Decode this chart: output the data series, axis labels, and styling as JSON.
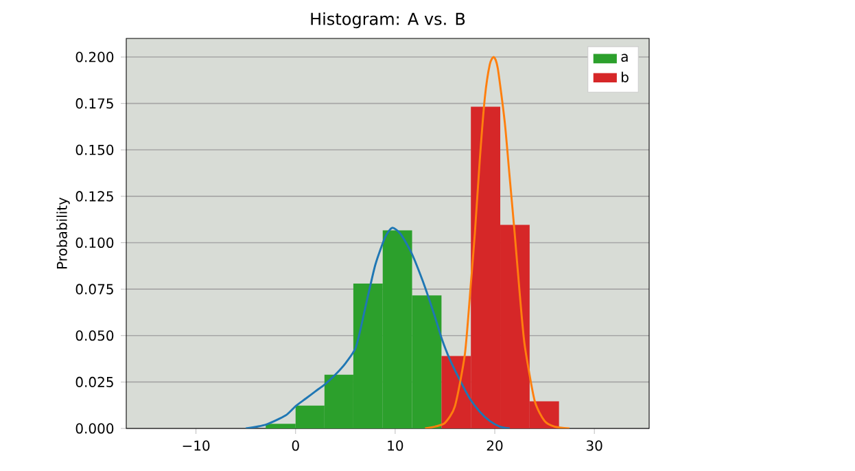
{
  "chart_data": {
    "type": "histogram",
    "title": "Histogram: A vs. B",
    "ylabel": "Probability",
    "xlim": [
      -17,
      35.5
    ],
    "ylim": [
      0,
      0.21
    ],
    "xticks": [
      {
        "value": -10,
        "label": "−10"
      },
      0,
      10,
      20,
      30
    ],
    "yticks": [
      {
        "value": 0,
        "label": "0.000"
      },
      {
        "value": 0.025,
        "label": "0.025"
      },
      {
        "value": 0.05,
        "label": "0.050"
      },
      {
        "value": 0.075,
        "label": "0.075"
      },
      {
        "value": 0.1,
        "label": "0.100"
      },
      {
        "value": 0.125,
        "label": "0.125"
      },
      {
        "value": 0.15,
        "label": "0.150"
      },
      {
        "value": 0.175,
        "label": "0.175"
      },
      {
        "value": 0.2,
        "label": "0.200"
      }
    ],
    "grid": "y",
    "legend": "top right",
    "series": [
      {
        "type": "histogram",
        "name": "a",
        "color": "#2ca02c",
        "bins": [
          -3.0,
          0.0,
          2.9,
          5.8,
          8.75,
          11.7,
          14.65
        ],
        "values": [
          0.0025,
          0.0123,
          0.0289,
          0.078,
          0.1067,
          0.0716
        ]
      },
      {
        "type": "histogram",
        "name": "b",
        "color": "#d62728",
        "bins": [
          14.65,
          17.6,
          20.55,
          23.5,
          26.45
        ],
        "values": [
          0.039,
          0.1733,
          0.1096,
          0.0146
        ]
      },
      {
        "type": "line",
        "color": "#1f77b4",
        "x": [
          -5,
          -3,
          -1,
          0,
          1,
          2,
          3,
          4,
          5,
          6,
          6.5,
          7,
          8,
          9,
          9.7,
          10.5,
          11.5,
          12,
          13,
          14,
          14.7,
          15.5,
          16.5,
          17.5,
          18.5,
          19.5,
          20.5,
          21.5
        ],
        "values": [
          0,
          0.002,
          0.007,
          0.012,
          0.016,
          0.02,
          0.024,
          0.029,
          0.035,
          0.043,
          0.053,
          0.065,
          0.088,
          0.103,
          0.108,
          0.105,
          0.096,
          0.09,
          0.076,
          0.06,
          0.048,
          0.037,
          0.026,
          0.016,
          0.009,
          0.004,
          0.001,
          0
        ]
      },
      {
        "type": "line",
        "color": "#ff7f0e",
        "x": [
          13,
          14,
          15,
          16,
          17,
          17.6,
          18,
          18.5,
          19,
          19.5,
          19.9,
          20.3,
          21,
          21.5,
          22,
          22.5,
          23,
          24,
          25,
          26,
          27.5
        ],
        "values": [
          0,
          0.001,
          0.003,
          0.012,
          0.04,
          0.078,
          0.105,
          0.145,
          0.178,
          0.196,
          0.2,
          0.194,
          0.165,
          0.135,
          0.105,
          0.073,
          0.045,
          0.015,
          0.004,
          0.001,
          0
        ]
      }
    ]
  }
}
